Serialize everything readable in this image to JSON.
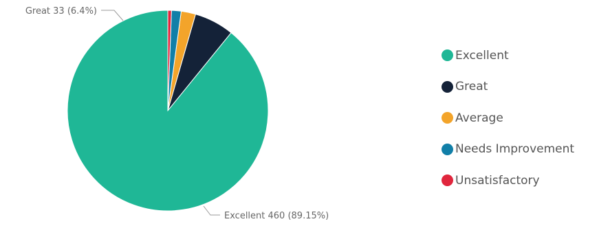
{
  "chart_data": {
    "type": "pie",
    "title": "",
    "categories": [
      "Excellent",
      "Great",
      "Average",
      "Needs Improvement",
      "Unsatisfactory"
    ],
    "values": [
      460,
      33,
      12,
      8,
      3
    ],
    "colors": [
      "#1fb796",
      "#142238",
      "#f3a42a",
      "#117fa8",
      "#e0263d"
    ],
    "start_angle_deg": 0,
    "direction": "counterclockwise",
    "data_labels": [
      {
        "category": "Excellent",
        "text": "Excellent 460 (89.15%)"
      },
      {
        "category": "Great",
        "text": "Great 33 (6.4%)"
      }
    ],
    "legend": {
      "position": "right",
      "entries": [
        "Excellent",
        "Great",
        "Average",
        "Needs Improvement",
        "Unsatisfactory"
      ]
    }
  }
}
